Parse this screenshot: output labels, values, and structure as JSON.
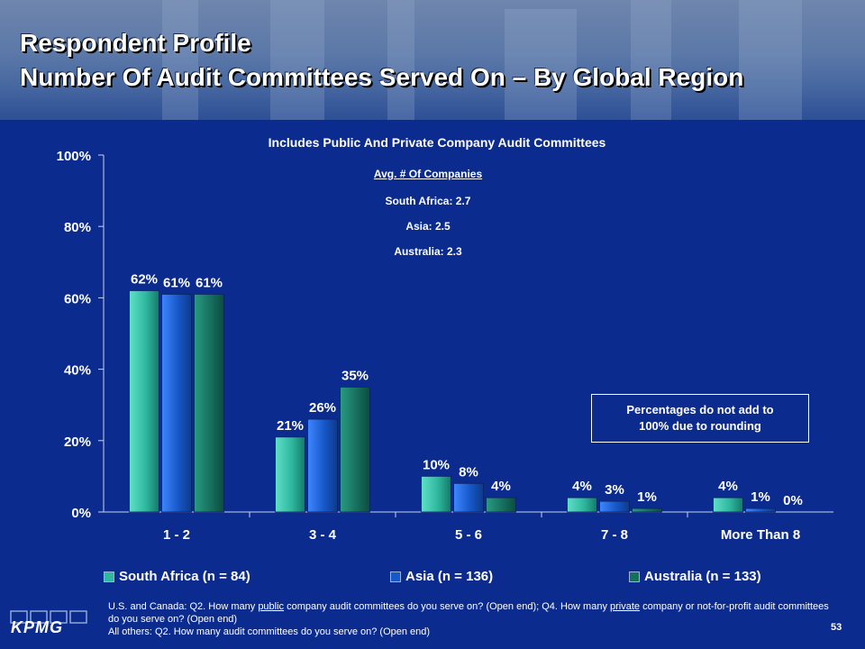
{
  "title": {
    "line1": "Respondent Profile",
    "line2": "Number Of Audit Committees Served On – By Global Region"
  },
  "avg_box": {
    "heading": "Avg. # Of Companies",
    "south_africa": "South Africa: 2.7",
    "asia": "Asia: 2.5",
    "australia": "Australia: 2.3"
  },
  "note": {
    "line1": "Percentages do not add to",
    "line2": "100% due to rounding"
  },
  "footnote": {
    "p1_a": "U.S. and Canada: Q2. How many ",
    "p1_u1": "public",
    "p1_b": " company audit committees do you serve on? (Open end); Q4. How many ",
    "p1_u2": "private",
    "p1_c": " company or not-for-profit audit committees do you serve on? (Open end)",
    "p2": "All others: Q2. How many audit committees do you serve on? (Open end)"
  },
  "page_number": "53",
  "logo_text": "KPMG",
  "colors": {
    "background": "#0b2c8e",
    "south_africa": "#2fb8a0",
    "asia": "#1758c8",
    "australia": "#16705e"
  },
  "chart_data": {
    "type": "bar",
    "title": "Includes Public And Private Company Audit Committees",
    "categories": [
      "1 - 2",
      "3 - 4",
      "5 - 6",
      "7 - 8",
      "More Than 8"
    ],
    "series": [
      {
        "name": "South Africa (n = 84)",
        "values": [
          62,
          21,
          10,
          4,
          4
        ],
        "labels": [
          "62%",
          "21%",
          "10%",
          "4%",
          "4%"
        ]
      },
      {
        "name": "Asia (n = 136)",
        "values": [
          61,
          26,
          8,
          3,
          1
        ],
        "labels": [
          "61%",
          "26%",
          "8%",
          "3%",
          "1%"
        ]
      },
      {
        "name": "Australia (n = 133)",
        "values": [
          61,
          35,
          4,
          1,
          0
        ],
        "labels": [
          "61%",
          "35%",
          "4%",
          "1%",
          "0%"
        ]
      }
    ],
    "ylim": [
      0,
      100
    ],
    "yticks": [
      "0%",
      "20%",
      "40%",
      "60%",
      "80%",
      "100%"
    ],
    "ytick_values": [
      0,
      20,
      40,
      60,
      80,
      100
    ],
    "xlabel": "",
    "ylabel": "",
    "legend_position": "bottom",
    "grid": false
  }
}
